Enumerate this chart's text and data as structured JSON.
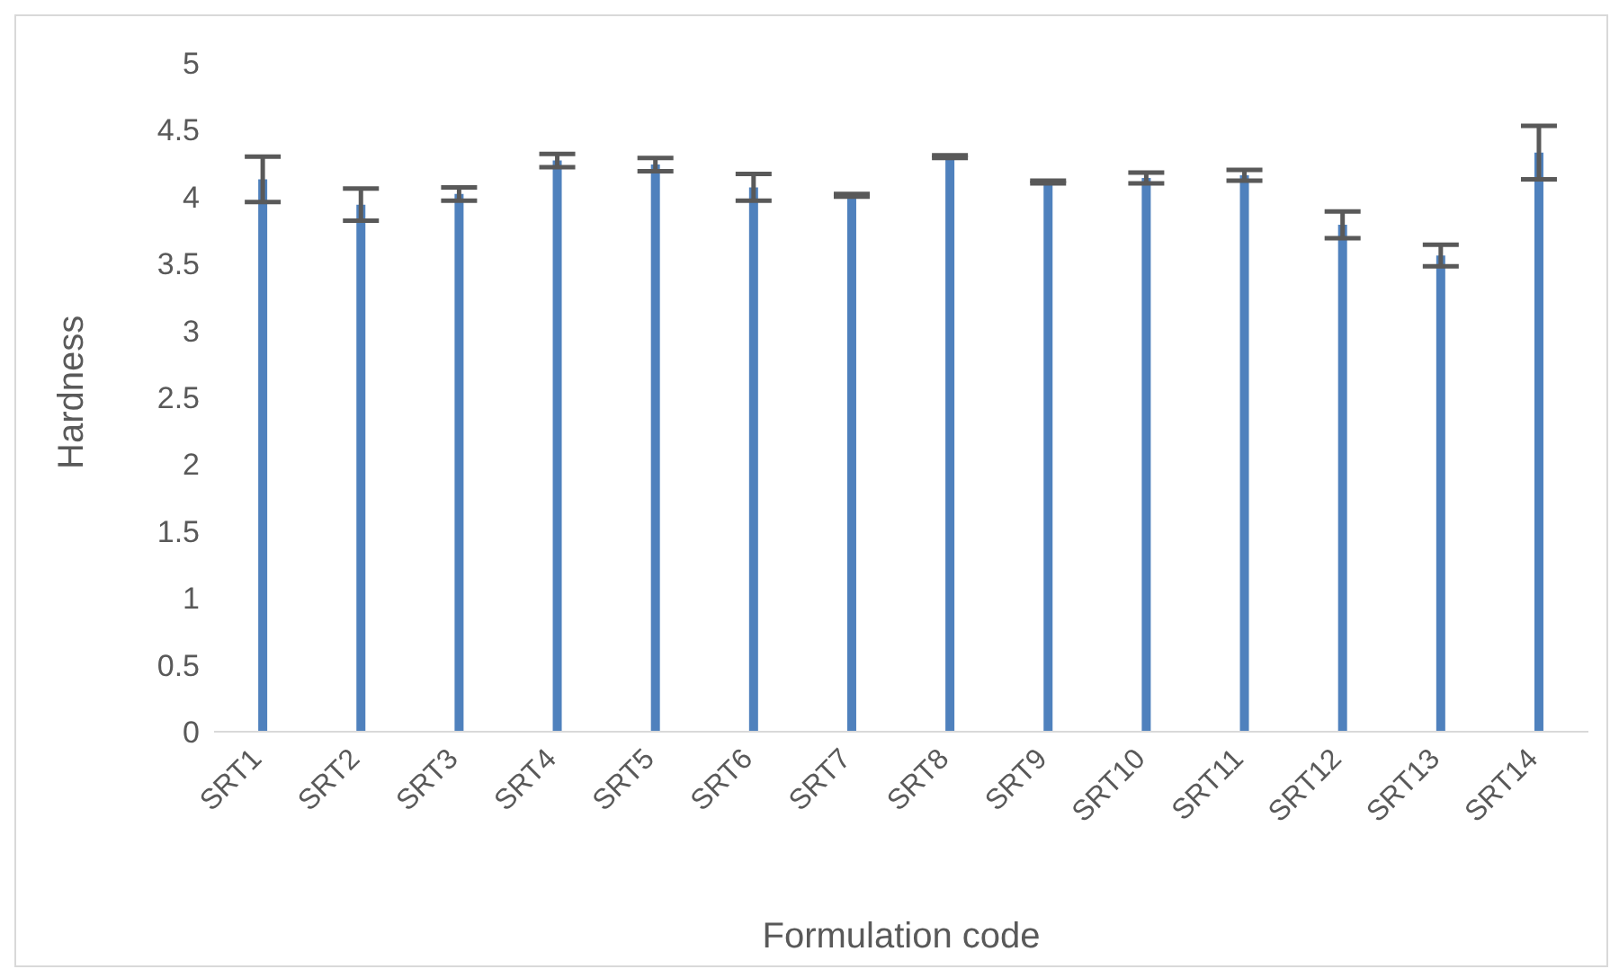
{
  "chart_data": {
    "type": "bar",
    "xlabel": "Formulation code",
    "ylabel": "Hardness",
    "categories": [
      "SRT1",
      "SRT2",
      "SRT3",
      "SRT4",
      "SRT5",
      "SRT6",
      "SRT7",
      "SRT8",
      "SRT9",
      "SRT10",
      "SRT11",
      "SRT12",
      "SRT13",
      "SRT14"
    ],
    "values": [
      4.13,
      3.94,
      4.02,
      4.27,
      4.24,
      4.07,
      4.01,
      4.3,
      4.11,
      4.14,
      4.16,
      3.79,
      3.56,
      4.33
    ],
    "errors": [
      0.17,
      0.12,
      0.05,
      0.05,
      0.05,
      0.1,
      0.01,
      0.01,
      0.01,
      0.04,
      0.04,
      0.1,
      0.08,
      0.2
    ],
    "color": "#4f81bd",
    "ylim": [
      0,
      5
    ],
    "yticks": [
      0,
      0.5,
      1,
      1.5,
      2,
      2.5,
      3,
      3.5,
      4,
      4.5,
      5
    ],
    "grid": false,
    "legend": false
  }
}
